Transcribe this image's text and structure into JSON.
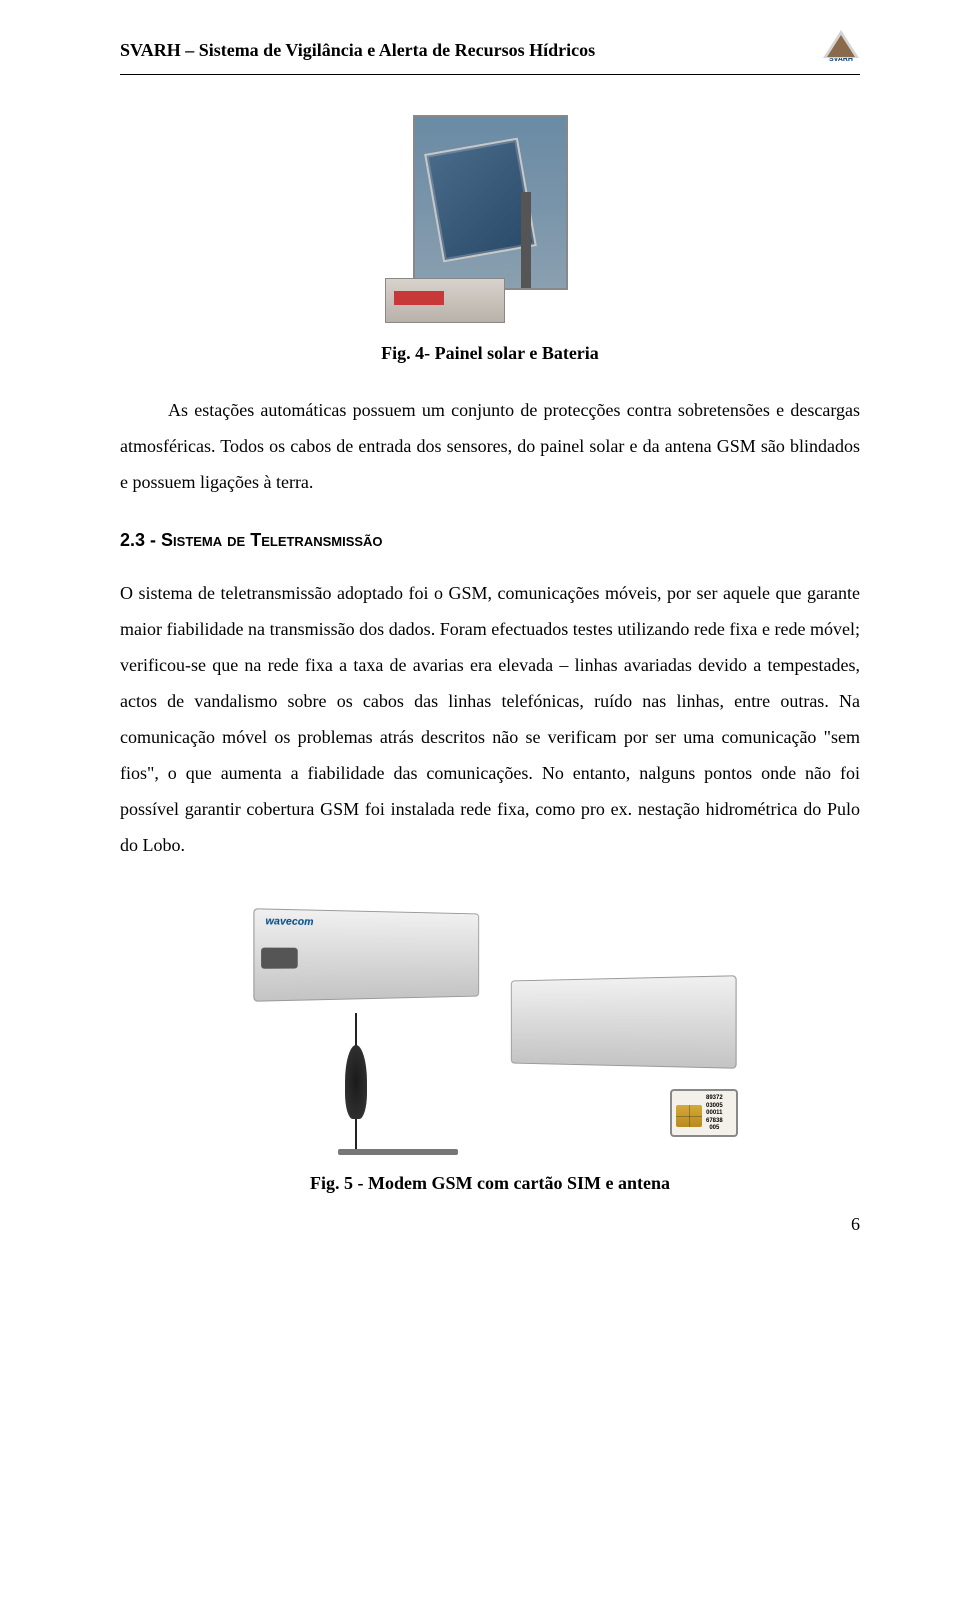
{
  "header": {
    "title": "SVARH – Sistema de Vigilância e Alerta de Recursos Hídricos",
    "logo_label": "SVARH"
  },
  "figure4": {
    "caption": "Fig. 4-  Painel solar e Bateria"
  },
  "para1": "As estações automáticas possuem um conjunto de protecções contra sobretensões e descargas atmosféricas. Todos os cabos de entrada dos sensores, do painel solar e da antena GSM são blindados e possuem ligações à terra.",
  "section_heading": {
    "number": "2.3 - ",
    "text": "Sistema de Teletransmissão"
  },
  "para2": "O sistema de teletransmissão adoptado foi o GSM, comunicações móveis, por ser aquele que garante maior fiabilidade na transmissão dos dados. Foram efectuados testes utilizando rede fixa e rede móvel; verificou-se que na rede fixa a taxa de avarias era elevada – linhas avariadas devido a tempestades, actos de vandalismo sobre os cabos das linhas telefónicas, ruído nas linhas, entre outras. Na comunicação móvel os problemas atrás descritos não se verificam por ser uma comunicação \"sem fios\", o que aumenta a fiabilidade das comunicações. No entanto, nalguns pontos onde não foi possível garantir cobertura GSM foi instalada rede fixa, como pro ex. nestação hidrométrica do Pulo do Lobo.",
  "figure5": {
    "brand": "wavecom",
    "sim_numbers": [
      "89372",
      "03005",
      "00011",
      "67838",
      "005"
    ],
    "caption": "Fig. 5 - Modem GSM com cartão SIM e antena"
  },
  "page_number": "6",
  "colors": {
    "text": "#000000",
    "logo_blue": "#003c7a",
    "battery_red": "#c83838",
    "modem_brand": "#00478a",
    "sim_gold": "#d4a938"
  }
}
